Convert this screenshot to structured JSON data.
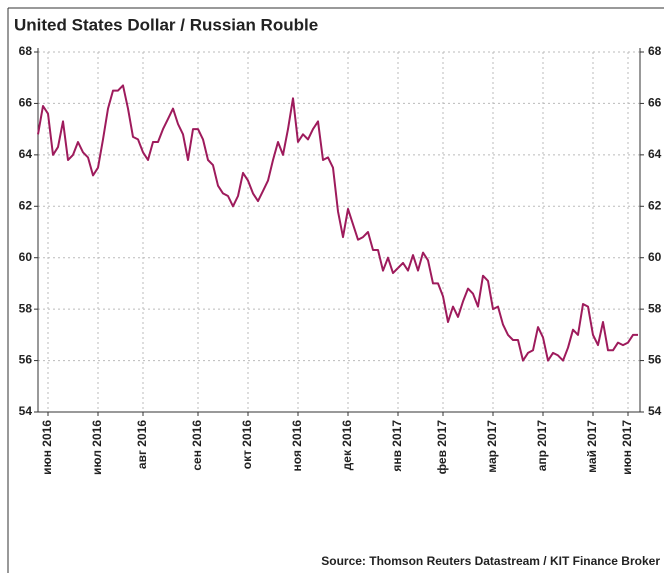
{
  "chart_data": {
    "type": "line",
    "title": "United States Dollar / Russian Rouble",
    "source": "Source: Thomson Reuters Datastream / KIT Finance Broker",
    "categories": [
      null,
      null,
      "июн 2016",
      null,
      null,
      null,
      null,
      null,
      null,
      null,
      null,
      null,
      "июл 2016",
      null,
      null,
      null,
      null,
      null,
      null,
      null,
      null,
      "авг 2016",
      null,
      null,
      null,
      null,
      null,
      null,
      null,
      null,
      null,
      null,
      "сен 2016",
      null,
      null,
      null,
      null,
      null,
      null,
      null,
      null,
      null,
      "окт 2016",
      null,
      null,
      null,
      null,
      null,
      null,
      null,
      null,
      null,
      "ноя 2016",
      null,
      null,
      null,
      null,
      null,
      null,
      null,
      null,
      null,
      "дек 2016",
      null,
      null,
      null,
      null,
      null,
      null,
      null,
      null,
      null,
      "янв 2017",
      null,
      null,
      null,
      null,
      null,
      null,
      null,
      null,
      "фев 2017",
      null,
      null,
      null,
      null,
      null,
      null,
      null,
      null,
      null,
      "мар 2017",
      null,
      null,
      null,
      null,
      null,
      null,
      null,
      null,
      null,
      "апр 2017",
      null,
      null,
      null,
      null,
      null,
      null,
      null,
      null,
      null,
      "май 2017",
      null,
      null,
      null,
      null,
      null,
      null,
      "июн 2017",
      null,
      null
    ],
    "series": [
      {
        "name": "USD/RUB",
        "color": "#9e1b5c",
        "values": [
          64.8,
          65.9,
          65.6,
          64.0,
          64.3,
          65.3,
          63.8,
          64.0,
          64.5,
          64.1,
          63.9,
          63.2,
          63.5,
          64.6,
          65.8,
          66.5,
          66.5,
          66.7,
          65.8,
          64.7,
          64.6,
          64.1,
          63.8,
          64.5,
          64.5,
          65.0,
          65.4,
          65.8,
          65.2,
          64.8,
          63.8,
          65.0,
          65.0,
          64.6,
          63.8,
          63.6,
          62.8,
          62.5,
          62.4,
          62.0,
          62.4,
          63.3,
          63.0,
          62.5,
          62.2,
          62.6,
          63.0,
          63.8,
          64.5,
          64.0,
          65.0,
          66.2,
          64.5,
          64.8,
          64.6,
          65.0,
          65.3,
          63.8,
          63.9,
          63.5,
          61.8,
          60.8,
          61.9,
          61.3,
          60.7,
          60.8,
          61.0,
          60.3,
          60.3,
          59.5,
          60.0,
          59.4,
          59.6,
          59.8,
          59.5,
          60.1,
          59.5,
          60.2,
          59.9,
          59.0,
          59.0,
          58.5,
          57.5,
          58.1,
          57.7,
          58.3,
          58.8,
          58.6,
          58.1,
          59.3,
          59.1,
          58.0,
          58.1,
          57.4,
          57.0,
          56.8,
          56.8,
          56.0,
          56.3,
          56.4,
          57.3,
          56.9,
          56.0,
          56.3,
          56.2,
          56.0,
          56.5,
          57.2,
          57.0,
          58.2,
          58.1,
          57.0,
          56.6,
          57.5,
          56.4,
          56.4,
          56.7,
          56.6,
          56.7,
          57.0,
          57.0
        ]
      }
    ],
    "ylim": [
      54,
      68
    ],
    "yticks": [
      54,
      56,
      58,
      60,
      62,
      64,
      66,
      68
    ],
    "grid": true
  }
}
